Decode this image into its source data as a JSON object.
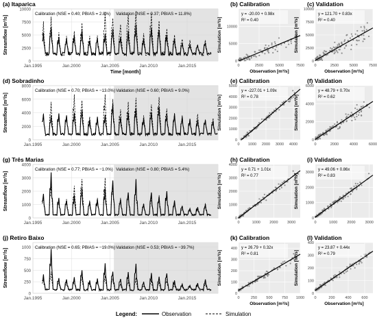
{
  "legend": {
    "title": "Legend:",
    "items": [
      {
        "label": "Observation",
        "style": "solid"
      },
      {
        "label": "Simulation",
        "style": "dashed"
      }
    ]
  },
  "colors": {
    "observation": "#000000",
    "simulation": "#000000",
    "validation_shade": "#e3e3e3",
    "scatter_bg": "#ebebeb",
    "scatter_points": "#808080",
    "grid": "#ffffff"
  },
  "chart_data": [
    {
      "type": "line",
      "panel": "(a)",
      "title": "(a) Itaparica",
      "xlabel": "Time [month]",
      "ylabel": "Streamflow [m³/s]",
      "x_ticks": [
        "Jan.1995",
        "Jan.2000",
        "Jan.2005",
        "Jan.2010",
        "Jan.2015"
      ],
      "xlim": [
        1995,
        2019
      ],
      "ylim": [
        0,
        10000
      ],
      "y_ticks": [
        "0",
        "2500",
        "5000",
        "7500",
        "10000"
      ],
      "validation_from": 2005.5,
      "calibration_label": "Calibration (NSE = 0.40; PBIAS = 2.8%)",
      "validation_label": "Validation (NSE = 0.37; PBIAS = 11.8%)",
      "series": [
        {
          "name": "Observation"
        },
        {
          "name": "Simulation"
        }
      ],
      "peaks_obs": [
        5400,
        6500,
        4600,
        4300,
        4900,
        5800,
        3900,
        4300,
        5200,
        6200,
        4600,
        5800,
        7000,
        4300,
        6300,
        5900,
        5000,
        4300,
        3400,
        3100,
        3000,
        3500
      ],
      "peaks_sim": [
        7600,
        8500,
        5500,
        4800,
        5700,
        7300,
        4800,
        4900,
        9400,
        8200,
        7000,
        9000,
        9600,
        5300,
        9200,
        7700,
        6200,
        5000,
        4200,
        4000,
        3200,
        4000
      ],
      "base": 1500
    },
    {
      "type": "scatter",
      "panel": "(b)",
      "title": "(b) Calibration",
      "xlabel": "Observation [m³/s]",
      "ylabel": "Simulation [m³/s]",
      "xlim": [
        0,
        7500
      ],
      "ylim": [
        0,
        15000
      ],
      "x_ticks": [
        "0",
        "2500",
        "5000",
        "7500"
      ],
      "y_ticks": [
        "0",
        "5000",
        "10000"
      ],
      "equation": "y = -20.00 + 0.98x",
      "r2": "R² = 0.40",
      "slope": 0.98,
      "intercept": -20.0,
      "n": 90,
      "xmax_data": 7200,
      "spread": 1800
    },
    {
      "type": "scatter",
      "panel": "(c)",
      "title": "(c) Validation",
      "xlabel": "Observation [m³/s]",
      "ylabel": "Simulation [m³/s]",
      "xlim": [
        0,
        7500
      ],
      "ylim": [
        0,
        10000
      ],
      "x_ticks": [
        "0",
        "2500",
        "5000",
        "7500"
      ],
      "y_ticks": [
        "0",
        "2500",
        "5000",
        "7500",
        "10000"
      ],
      "equation": "y = 121.70 + 0.83x",
      "r2": "R² = 0.40",
      "slope": 0.83,
      "intercept": 121.7,
      "n": 120,
      "xmax_data": 7000,
      "spread": 1400
    },
    {
      "type": "line",
      "panel": "(d)",
      "title": "(d) Sobradinho",
      "xlabel": "",
      "ylabel": "Streamflow [m³/s]",
      "x_ticks": [
        "Jan.1995",
        "Jan.2000",
        "Jan.2005",
        "Jan.2010",
        "Jan.2015"
      ],
      "xlim": [
        1995,
        2019
      ],
      "ylim": [
        0,
        8000
      ],
      "y_ticks": [
        "0",
        "2000",
        "4000",
        "6000",
        "8000"
      ],
      "validation_from": 2005.5,
      "calibration_label": "Calibration (NSE = 0.70; PBIAS = −13.0%)",
      "validation_label": "Validation (NSE = 0.60; PBIAS = 9.0%)",
      "series": [
        {
          "name": "Observation"
        },
        {
          "name": "Simulation"
        }
      ],
      "peaks_obs": [
        3800,
        3600,
        3900,
        3600,
        4000,
        4400,
        3000,
        3400,
        3700,
        5400,
        3200,
        4000,
        4600,
        3200,
        4000,
        4800,
        3800,
        3800,
        3400,
        3100,
        3000,
        2900,
        2800
      ],
      "peaks_sim": [
        3900,
        5600,
        3700,
        3600,
        6700,
        5800,
        3400,
        3200,
        6700,
        6000,
        4500,
        5600,
        6200,
        3600,
        5200,
        6300,
        4600,
        4000,
        3600,
        3000,
        3800,
        3000,
        3200
      ],
      "base": 900
    },
    {
      "type": "scatter",
      "panel": "(e)",
      "title": "(e) Calibration",
      "xlabel": "",
      "ylabel": "Simulation [m³/s]",
      "xlim": [
        0,
        4500
      ],
      "ylim": [
        0,
        5000
      ],
      "x_ticks": [
        "0",
        "1000",
        "2000",
        "3000",
        "4000"
      ],
      "y_ticks": [
        "0",
        "1000",
        "2000",
        "3000",
        "4000",
        "5000"
      ],
      "equation": "y = -227.01 + 1.09x",
      "r2": "R² = 0.78",
      "slope": 1.09,
      "intercept": -227.01,
      "n": 110,
      "xmax_data": 4200,
      "spread": 350
    },
    {
      "type": "scatter",
      "panel": "(f)",
      "title": "(f) Validation",
      "xlabel": "",
      "ylabel": "Simulation [m³/s]",
      "xlim": [
        0,
        6000
      ],
      "ylim": [
        0,
        6000
      ],
      "x_ticks": [
        "0",
        "2000",
        "4000",
        "6000"
      ],
      "y_ticks": [
        "0",
        "2000",
        "4000",
        "6000"
      ],
      "equation": "y = 48.79 + 0.70x",
      "r2": "R² = 0.62",
      "slope": 0.7,
      "intercept": 48.79,
      "n": 130,
      "xmax_data": 5700,
      "spread": 550
    },
    {
      "type": "line",
      "panel": "(g)",
      "title": "(g) Três Marias",
      "xlabel": "",
      "ylabel": "Streamflow [m³/s]",
      "x_ticks": [
        "Jan.1995",
        "Jan.2000",
        "Jan.2005",
        "Jan.2010",
        "Jan.2015"
      ],
      "xlim": [
        1995,
        2019
      ],
      "ylim": [
        0,
        4000
      ],
      "y_ticks": [
        "0",
        "1000",
        "2000",
        "3000",
        "4000"
      ],
      "validation_from": 2005.5,
      "calibration_label": "Calibration (NSE = 0.77; PBIAS = −1.0%)",
      "validation_label": "Validation (NSE = 0.80; PBIAS = 5.4%)",
      "series": [
        {
          "name": "Observation"
        },
        {
          "name": "Simulation"
        }
      ],
      "peaks_obs": [
        1800,
        3400,
        1500,
        1300,
        1700,
        2200,
        1200,
        1400,
        2200,
        2800,
        1400,
        1900,
        2900,
        1000,
        1900,
        1600,
        2000,
        1300,
        900,
        700,
        800,
        1000
      ],
      "peaks_sim": [
        1600,
        2600,
        1300,
        1400,
        2400,
        2900,
        1300,
        1500,
        3000,
        2700,
        1500,
        1800,
        2500,
        1100,
        1600,
        1700,
        1900,
        1200,
        800,
        600,
        700,
        1100
      ],
      "base": 250
    },
    {
      "type": "scatter",
      "panel": "(h)",
      "title": "(h) Calibration",
      "xlabel": "",
      "ylabel": "Simulation [m³/s]",
      "xlim": [
        0,
        3500
      ],
      "ylim": [
        0,
        4000
      ],
      "x_ticks": [
        "0",
        "1000",
        "2000",
        "3000"
      ],
      "y_ticks": [
        "0",
        "1000",
        "2000",
        "3000",
        "4000"
      ],
      "equation": "y = 0.71 + 1.01x",
      "r2": "R² = 0.77",
      "slope": 1.01,
      "intercept": 0.71,
      "n": 110,
      "xmax_data": 3300,
      "spread": 280
    },
    {
      "type": "scatter",
      "panel": "(i)",
      "title": "(i) Validation",
      "xlabel": "",
      "ylabel": "Simulation [m³/s]",
      "xlim": [
        0,
        3200
      ],
      "ylim": [
        0,
        3500
      ],
      "x_ticks": [
        "0",
        "1000",
        "2000",
        "3000"
      ],
      "y_ticks": [
        "0",
        "1000",
        "2000",
        "3000"
      ],
      "equation": "y = 49.06 + 0.86x",
      "r2": "R² = 0.83",
      "slope": 0.86,
      "intercept": 49.06,
      "n": 130,
      "xmax_data": 3000,
      "spread": 200
    },
    {
      "type": "line",
      "panel": "(j)",
      "title": "(j) Retiro Baixo",
      "xlabel": "",
      "ylabel": "Streamflow [m³/s]",
      "x_ticks": [
        "Jan.1995",
        "Jan.2000",
        "Jan.2005",
        "Jan.2010",
        "Jan.2015"
      ],
      "xlim": [
        1995,
        2019
      ],
      "ylim": [
        0,
        1100
      ],
      "y_ticks": [
        "0",
        "250",
        "500",
        "750",
        "1000"
      ],
      "validation_from": 2005.5,
      "calibration_label": "Calibration (NSE = 0.65; PBIAS = −19.0%)",
      "validation_label": "Validation (NSE = 0.53; PBIAS = −39.7%)",
      "series": [
        {
          "name": "Observation"
        },
        {
          "name": "Simulation"
        }
      ],
      "peaks_obs": [
        410,
        960,
        330,
        300,
        350,
        500,
        280,
        320,
        650,
        470,
        310,
        460,
        640,
        250,
        440,
        360,
        430,
        280,
        200,
        170,
        220,
        300
      ],
      "peaks_sim": [
        300,
        470,
        250,
        250,
        300,
        360,
        230,
        260,
        380,
        340,
        210,
        280,
        340,
        170,
        280,
        250,
        300,
        200,
        160,
        140,
        180,
        220
      ],
      "base": 80
    },
    {
      "type": "scatter",
      "panel": "(k)",
      "title": "(k) Calibration",
      "xlabel": "Observation [m³/s]",
      "ylabel": "Simulation [m³/s]",
      "xlim": [
        0,
        1000
      ],
      "ylim": [
        0,
        450
      ],
      "x_ticks": [
        "0",
        "250",
        "500",
        "750",
        "1000"
      ],
      "y_ticks": [
        "0",
        "100",
        "200",
        "300",
        "400"
      ],
      "equation": "y = 26.79 + 0.32x",
      "r2": "R² = 0.81",
      "slope": 0.32,
      "intercept": 26.79,
      "n": 110,
      "xmax_data": 950,
      "spread": 25
    },
    {
      "type": "scatter",
      "panel": "(l)",
      "title": "(l) Validation",
      "xlabel": "Observation [m³/s]",
      "ylabel": "Simulation [m³/s]",
      "xlim": [
        0,
        700
      ],
      "ylim": [
        0,
        400
      ],
      "x_ticks": [
        "0",
        "200",
        "400",
        "600"
      ],
      "y_ticks": [
        "0",
        "100",
        "200",
        "300",
        "400"
      ],
      "equation": "y = 23.87 + 0.44x",
      "r2": "R² = 0.79",
      "slope": 0.44,
      "intercept": 23.87,
      "n": 130,
      "xmax_data": 680,
      "spread": 25
    }
  ]
}
